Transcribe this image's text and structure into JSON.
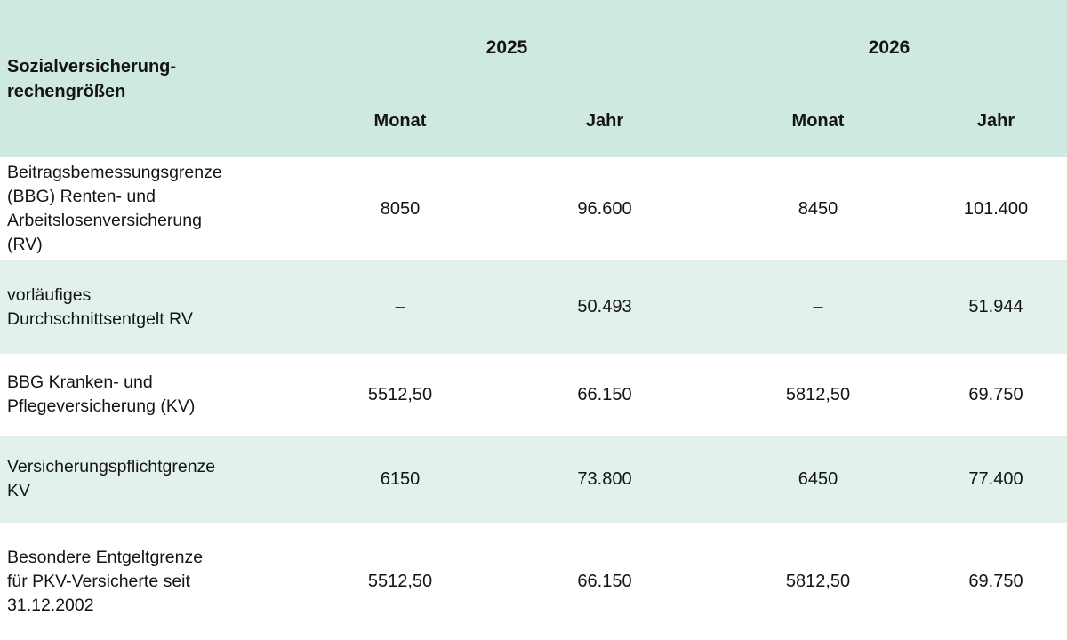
{
  "table": {
    "title": "Sozialversicherung-\nrechengrößen",
    "year_groups": [
      {
        "label": "2025"
      },
      {
        "label": "2026"
      }
    ],
    "sub_headers": [
      "Monat",
      "Jahr",
      "Monat",
      "Jahr"
    ],
    "rows": [
      {
        "label": "Beitragsbemessungsgrenze\n(BBG) Renten- und\nArbeitslosenversicherung\n(RV)",
        "values": [
          "8050",
          "96.600",
          "8450",
          "101.400"
        ]
      },
      {
        "label": "vorläufiges\nDurchschnittsentgelt RV",
        "values": [
          "–",
          "50.493",
          "–",
          "51.944"
        ]
      },
      {
        "label": "BBG Kranken- und\nPflegeversicherung (KV)",
        "values": [
          "5512,50",
          "66.150",
          "5812,50",
          "69.750"
        ]
      },
      {
        "label": "Versicherungspflichtgrenze\nKV",
        "values": [
          "6150",
          "73.800",
          "6450",
          "77.400"
        ]
      },
      {
        "label": "Besondere Entgeltgrenze\nfür PKV-Versicherte seit\n31.12.2002",
        "values": [
          "5512,50",
          "66.150",
          "5812,50",
          "69.750"
        ]
      }
    ],
    "colors": {
      "header_bg": "#cee8e2",
      "stripe_bg": "#e3f1ed",
      "row_bg": "#ffffff",
      "text": "#141414"
    }
  },
  "chart_data": {
    "type": "table",
    "title": "Sozialversicherungrechengrößen",
    "columns": [
      "Sozialversicherung-rechengrößen",
      "2025 Monat",
      "2025 Jahr",
      "2026 Monat",
      "2026 Jahr"
    ],
    "rows": [
      [
        "Beitragsbemessungsgrenze (BBG) Renten- und Arbeitslosenversicherung (RV)",
        "8050",
        "96.600",
        "8450",
        "101.400"
      ],
      [
        "vorläufiges Durchschnittsentgelt RV",
        "–",
        "50.493",
        "–",
        "51.944"
      ],
      [
        "BBG Kranken- und Pflegeversicherung (KV)",
        "5512,50",
        "66.150",
        "5812,50",
        "69.750"
      ],
      [
        "Versicherungspflichtgrenze KV",
        "6150",
        "73.800",
        "6450",
        "77.400"
      ],
      [
        "Besondere Entgeltgrenze für PKV-Versicherte seit 31.12.2002",
        "5512,50",
        "66.150",
        "5812,50",
        "69.750"
      ]
    ],
    "layout_hints": {
      "header_grouping": "years span two sub-columns (Monat, Jahr)",
      "zebra_striping": true,
      "number_format": "German (thousands dot, decimal comma)"
    }
  }
}
